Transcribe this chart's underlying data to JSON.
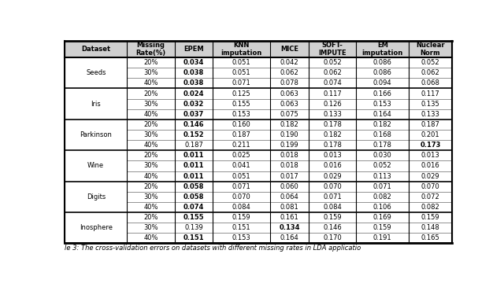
{
  "headers": [
    "Dataset",
    "Missing\nRate(%)",
    "EPEM",
    "KNN\nimputation",
    "MICE",
    "SOFT-\nIMPUTE",
    "EM\nimputation",
    "Nuclear\nNorm"
  ],
  "datasets": [
    "Seeds",
    "Iris",
    "Parkinson",
    "Wine",
    "Digits",
    "Inosphere"
  ],
  "rates": [
    "20%",
    "30%",
    "40%"
  ],
  "epem_data": [
    [
      [
        "0.034",
        true
      ],
      [
        "0.038",
        true
      ],
      [
        "0.038",
        true
      ]
    ],
    [
      [
        "0.024",
        true
      ],
      [
        "0.032",
        true
      ],
      [
        "0.037",
        true
      ]
    ],
    [
      [
        "0.146",
        true
      ],
      [
        "0.152",
        true
      ],
      [
        "0.187",
        false
      ]
    ],
    [
      [
        "0.011",
        true
      ],
      [
        "0.011",
        true
      ],
      [
        "0.011",
        true
      ]
    ],
    [
      [
        "0.058",
        true
      ],
      [
        "0.058",
        true
      ],
      [
        "0.074",
        true
      ]
    ],
    [
      [
        "0.155",
        true
      ],
      [
        "0.139",
        false
      ],
      [
        "0.151",
        true
      ]
    ]
  ],
  "knn_data": [
    [
      "0.051",
      "0.051",
      "0.071"
    ],
    [
      "0.125",
      "0.155",
      "0.153"
    ],
    [
      "0.160",
      "0.187",
      "0.211"
    ],
    [
      "0.025",
      "0.041",
      "0.051"
    ],
    [
      "0.071",
      "0.070",
      "0.084"
    ],
    [
      "0.159",
      "0.151",
      "0.153"
    ]
  ],
  "mice_data": [
    [
      [
        "0.042",
        false
      ],
      [
        "0.062",
        false
      ],
      [
        "0.078",
        false
      ]
    ],
    [
      [
        "0.063",
        false
      ],
      [
        "0.063",
        false
      ],
      [
        "0.075",
        false
      ]
    ],
    [
      [
        "0.182",
        false
      ],
      [
        "0.190",
        false
      ],
      [
        "0.199",
        false
      ]
    ],
    [
      [
        "0.018",
        false
      ],
      [
        "0.018",
        false
      ],
      [
        "0.017",
        false
      ]
    ],
    [
      [
        "0.060",
        false
      ],
      [
        "0.064",
        false
      ],
      [
        "0.081",
        false
      ]
    ],
    [
      [
        "0.161",
        false
      ],
      [
        "0.134",
        true
      ],
      [
        "0.164",
        false
      ]
    ]
  ],
  "soft_data": [
    [
      "0.052",
      "0.062",
      "0.074"
    ],
    [
      "0.117",
      "0.126",
      "0.133"
    ],
    [
      "0.178",
      "0.182",
      "0.178"
    ],
    [
      "0.013",
      "0.016",
      "0.029"
    ],
    [
      "0.070",
      "0.071",
      "0.084"
    ],
    [
      "0.159",
      "0.146",
      "0.170"
    ]
  ],
  "em_data": [
    [
      "0.086",
      "0.086",
      "0.094"
    ],
    [
      "0.166",
      "0.153",
      "0.164"
    ],
    [
      "0.182",
      "0.168",
      "0.178"
    ],
    [
      "0.030",
      "0.052",
      "0.113"
    ],
    [
      "0.071",
      "0.082",
      "0.106"
    ],
    [
      "0.169",
      "0.159",
      "0.191"
    ]
  ],
  "nuclear_data": [
    [
      [
        "0.052",
        false
      ],
      [
        "0.062",
        false
      ],
      [
        "0.068",
        false
      ]
    ],
    [
      [
        "0.117",
        false
      ],
      [
        "0.135",
        false
      ],
      [
        "0.133",
        false
      ]
    ],
    [
      [
        "0.187",
        false
      ],
      [
        "0.201",
        false
      ],
      [
        "0.173",
        true
      ]
    ],
    [
      [
        "0.013",
        false
      ],
      [
        "0.016",
        false
      ],
      [
        "0.029",
        false
      ]
    ],
    [
      [
        "0.070",
        false
      ],
      [
        "0.072",
        false
      ],
      [
        "0.082",
        false
      ]
    ],
    [
      [
        "0.159",
        false
      ],
      [
        "0.148",
        false
      ],
      [
        "0.165",
        false
      ]
    ]
  ],
  "header_bg": "#d0d0d0",
  "row_bg": "#ffffff",
  "caption": "le 3: The cross-validation errors on datasets with different missing rates in LDA applicatio"
}
